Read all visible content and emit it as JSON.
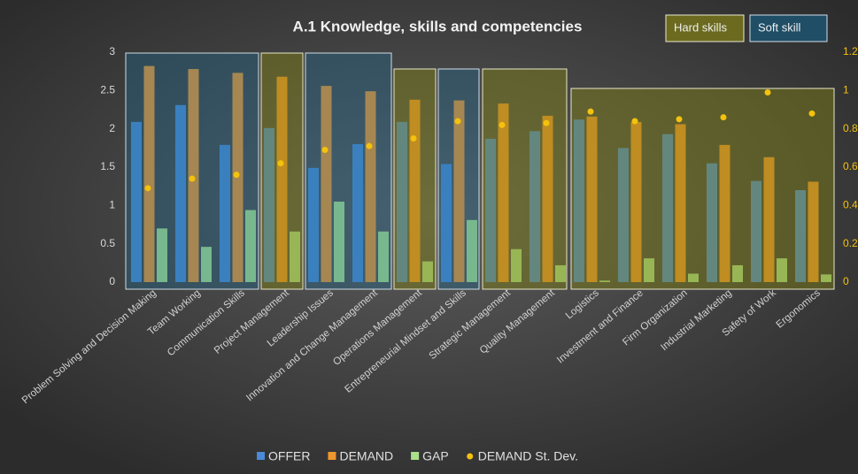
{
  "chart_data": {
    "type": "bar",
    "title": "A.1 Knowledge, skills and competencies",
    "annotations": [
      "Hard skills",
      "Soft skill"
    ],
    "categories": [
      "Problem Solving and Decision Making",
      "Team Working",
      "Communication Skills",
      "Project Management",
      "Leadership Issues",
      "Innovation and Change Management",
      "Operations Management",
      "Entrepreneurial Mindset and Skills",
      "Strategic Management",
      "Quality Management",
      "Logistics",
      "Investment and Finance",
      "Firm Organization",
      "Industrial Marketing",
      "Safety of Work",
      "Ergonomics"
    ],
    "series": [
      {
        "name": "OFFER",
        "color": "#4a8ad6",
        "values": [
          2.09,
          2.31,
          1.79,
          2.01,
          1.49,
          1.8,
          2.09,
          1.54,
          1.87,
          1.97,
          2.12,
          1.75,
          1.93,
          1.55,
          1.32,
          1.2
        ]
      },
      {
        "name": "DEMAND",
        "color": "#f0962e",
        "values": [
          2.82,
          2.78,
          2.73,
          2.68,
          2.56,
          2.49,
          2.38,
          2.37,
          2.33,
          2.17,
          2.16,
          2.09,
          2.06,
          1.79,
          1.63,
          1.31
        ]
      },
      {
        "name": "GAP",
        "color": "#a9e08a",
        "values": [
          0.7,
          0.46,
          0.94,
          0.66,
          1.05,
          0.66,
          0.27,
          0.81,
          0.43,
          0.22,
          0.02,
          0.31,
          0.11,
          0.22,
          0.31,
          0.1
        ]
      },
      {
        "name": "DEMAND St. Dev.",
        "color": "#f4c20d",
        "axis": "y2",
        "values": [
          0.49,
          0.54,
          0.56,
          0.62,
          0.69,
          0.71,
          0.75,
          0.84,
          0.82,
          0.83,
          0.89,
          0.84,
          0.85,
          0.86,
          0.99,
          0.88
        ]
      }
    ],
    "ylim": [
      0,
      3
    ],
    "yticks": [
      0,
      0.5,
      1,
      1.5,
      2,
      2.5,
      3
    ],
    "y2lim": [
      0,
      1.2
    ],
    "y2ticks": [
      0,
      0.2,
      0.4,
      0.6,
      0.8,
      1,
      1.2
    ],
    "grid": false
  }
}
